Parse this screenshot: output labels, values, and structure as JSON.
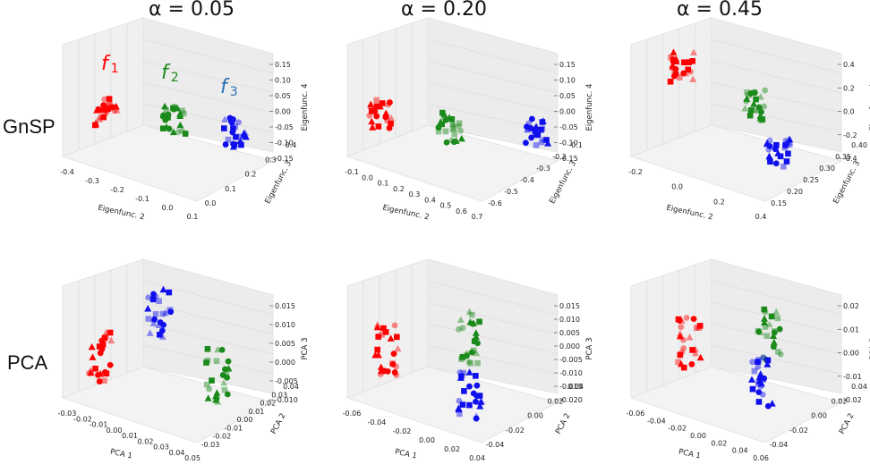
{
  "figure": {
    "column_titles": [
      "α = 0.05",
      "α = 0.20",
      "α = 0.45"
    ],
    "row_labels": [
      "GnSP",
      "PCA"
    ],
    "function_labels": [
      {
        "text": "f",
        "sub": "1"
      },
      {
        "text": "f",
        "sub": "2"
      },
      {
        "text": "f",
        "sub": "3"
      }
    ]
  },
  "colors": {
    "f1": "#ff0000",
    "f2": "#1a8a1a",
    "f3": "#1010ee",
    "pane": "#f0f0f0",
    "grid": "#d8d8d8"
  },
  "chart_data": [
    {
      "type": "scatter3d",
      "method": "GnSP",
      "alpha": "α = 0.05",
      "xlabel": "Eigenfunc. 2",
      "ylabel": "Eigenfunc. 3",
      "zlabel": "Eigenfunc. 4",
      "xticks": [
        "-0.4",
        "-0.3",
        "-0.2",
        "-0.1",
        "0.0",
        "0.1"
      ],
      "yticks": [
        "0.0",
        "0.1",
        "0.2",
        "0.3",
        "0.4"
      ],
      "zticks": [
        "0.15",
        "0.10",
        "0.05",
        "0.00",
        "-0.05",
        "-0.10",
        "-0.15"
      ],
      "clusters": [
        {
          "series": "f1",
          "x": -0.33,
          "y": 0.35,
          "z": 0.02
        },
        {
          "series": "f2",
          "x": -0.15,
          "y": 0.3,
          "z": -0.02
        },
        {
          "series": "f3",
          "x": 0.02,
          "y": 0.28,
          "z": -0.06
        }
      ]
    },
    {
      "type": "scatter3d",
      "method": "GnSP",
      "alpha": "α = 0.20",
      "xlabel": "Eigenfunc. 2",
      "ylabel": "Eigenfunc. 3",
      "zlabel": "Eigenfunc. 4",
      "xticks": [
        "-0.1",
        "0.0",
        "0.1",
        "0.2",
        "0.3",
        "0.4",
        "0.5",
        "0.6",
        "0.7"
      ],
      "yticks": [
        "-0.6",
        "-0.5",
        "-0.4",
        "-0.3",
        "-0.2",
        "-0.1"
      ],
      "zticks": [
        "0.15",
        "0.10",
        "0.05",
        "0.00",
        "-0.05",
        "-0.10",
        "-0.15"
      ],
      "clusters": [
        {
          "series": "f1",
          "x": 0.0,
          "y": -0.15,
          "z": 0.03
        },
        {
          "series": "f2",
          "x": 0.25,
          "y": -0.3,
          "z": -0.04
        },
        {
          "series": "f3",
          "x": 0.55,
          "y": -0.45,
          "z": -0.08
        }
      ]
    },
    {
      "type": "scatter3d",
      "method": "GnSP",
      "alpha": "α = 0.45",
      "xlabel": "Eigenfunc. 2",
      "ylabel": "Eigenfunc. 3",
      "zlabel": "Eigenfunc. 4",
      "xticks": [
        "-0.2",
        "0.0",
        "0.2",
        "0.4"
      ],
      "yticks": [
        "0.15",
        "0.20",
        "0.25",
        "0.30",
        "0.35",
        "0.40"
      ],
      "zticks": [
        "0.4",
        "0.2",
        "0.0",
        "-0.2",
        "-0.4"
      ],
      "clusters": [
        {
          "series": "f1",
          "x": -0.2,
          "y": 0.35,
          "z": 0.35
        },
        {
          "series": "f2",
          "x": 0.1,
          "y": 0.3,
          "z": -0.05
        },
        {
          "series": "f3",
          "x": 0.25,
          "y": 0.2,
          "z": -0.4
        }
      ]
    },
    {
      "type": "scatter3d",
      "method": "PCA",
      "alpha": "α = 0.05",
      "xlabel": "PCA 1",
      "ylabel": "PCA 2",
      "zlabel": "PCA 3",
      "xticks": [
        "-0.03",
        "-0.02",
        "-0.01",
        "0.00",
        "0.01",
        "0.02",
        "0.03",
        "0.04",
        "0.05"
      ],
      "yticks": [
        "-0.03",
        "-0.02",
        "-0.01",
        "0.00",
        "0.01",
        "0.02",
        "0.03",
        "0.04"
      ],
      "zticks": [
        "0.015",
        "0.010",
        "0.005",
        "0.000",
        "-0.005",
        "-0.010"
      ],
      "clusters": [
        {
          "series": "f1",
          "x": -0.025,
          "y": 0.0,
          "z": -0.005
        },
        {
          "series": "f3",
          "x": 0.005,
          "y": 0.01,
          "z": 0.012
        },
        {
          "series": "f2",
          "x": 0.04,
          "y": -0.01,
          "z": -0.01
        }
      ]
    },
    {
      "type": "scatter3d",
      "method": "PCA",
      "alpha": "α = 0.20",
      "xlabel": "PCA 1",
      "ylabel": "PCA 2",
      "zlabel": "PCA 3",
      "xticks": [
        "-0.06",
        "-0.04",
        "-0.02",
        "0.00",
        "0.02",
        "0.04"
      ],
      "yticks": [
        "-0.04",
        "-0.02",
        "0.00",
        "0.02",
        "0.04"
      ],
      "zticks": [
        "0.015",
        "0.010",
        "0.005",
        "0.000",
        "-0.005",
        "-0.010",
        "-0.015",
        "-0.020"
      ],
      "clusters": [
        {
          "series": "f1",
          "x": -0.05,
          "y": 0.0,
          "z": 0.0
        },
        {
          "series": "f2",
          "x": 0.02,
          "y": 0.02,
          "z": 0.01
        },
        {
          "series": "f3",
          "x": 0.0,
          "y": -0.02,
          "z": -0.012
        }
      ]
    },
    {
      "type": "scatter3d",
      "method": "PCA",
      "alpha": "α = 0.45",
      "xlabel": "PCA 1",
      "ylabel": "PCA 2",
      "zlabel": "PCA 3",
      "xticks": [
        "-0.06",
        "-0.04",
        "-0.02",
        "0.00",
        "0.02",
        "0.04",
        "0.06"
      ],
      "yticks": [
        "-0.04",
        "-0.02",
        "0.00",
        "0.02",
        "0.04"
      ],
      "zticks": [
        "0.02",
        "0.01",
        "0.00",
        "-0.01",
        "-0.02"
      ],
      "clusters": [
        {
          "series": "f1",
          "x": -0.05,
          "y": 0.0,
          "z": 0.005
        },
        {
          "series": "f2",
          "x": 0.02,
          "y": 0.02,
          "z": 0.01
        },
        {
          "series": "f3",
          "x": 0.04,
          "y": -0.02,
          "z": -0.015
        }
      ]
    }
  ]
}
